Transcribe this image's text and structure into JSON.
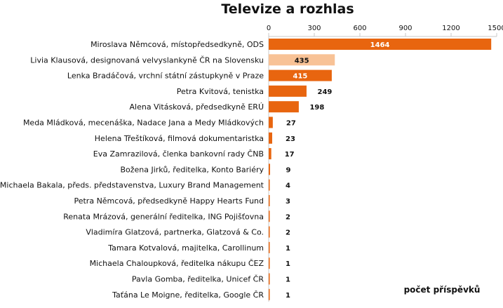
{
  "chart_data": {
    "type": "bar",
    "orientation": "horizontal",
    "title": "Televize a rozhlas",
    "xlabel": "počet příspěvků",
    "xlim": [
      0,
      1500
    ],
    "xticks": [
      0,
      300,
      600,
      900,
      1200,
      1500
    ],
    "grid": false,
    "legend": "none",
    "categories": [
      "Miroslava Němcová, místopředsedkyně, ODS",
      "Livia Klausová, designovaná velvyslankyně ČR na Slovensku",
      "Lenka Bradáčová, vrchní státní zástupkyně v Praze",
      "Petra Kvitová, tenistka",
      "Alena Vitásková, předsedkyně ERÚ",
      "Meda Mládková, mecenáška, Nadace Jana a Medy Mládkových",
      "Helena Třeštíková, filmová dokumentaristka",
      "Eva Zamrazilová, členka bankovní rady ČNB",
      "Božena Jirků, ředitelka, Konto Bariéry",
      "Michaela Bakala, předs. představenstva, Luxury Brand Management",
      "Petra Němcová, předsedkyně Happy Hearts Fund",
      "Renata Mrázová, generální ředitelka, ING Pojišťovna",
      "Vladimíra Glatzová, partnerka, Glatzová & Co.",
      "Tamara Kotvalová, majitelka, Carollinum",
      "Michaela Chaloupková, ředitelka nákupu ČEZ",
      "Pavla Gomba, ředitelka, Unicef ČR",
      "Taťána Le Moigne, ředitelka, Google ČR"
    ],
    "values": [
      1464,
      435,
      415,
      249,
      198,
      27,
      23,
      17,
      9,
      4,
      3,
      2,
      2,
      1,
      1,
      1,
      1
    ],
    "colors": {
      "bar": "#E8650F",
      "highlight": "#F8C296",
      "highlight_index": 1,
      "label_inside": "#ffffff",
      "label_outside": "#111111"
    }
  }
}
